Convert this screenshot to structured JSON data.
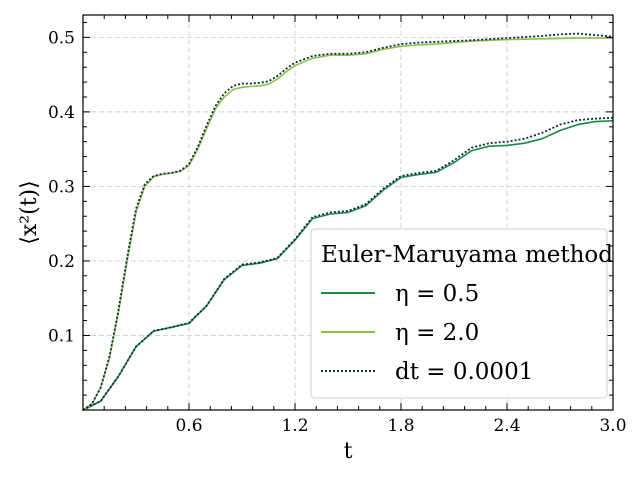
{
  "chart_data": {
    "type": "line",
    "xlabel": "t",
    "ylabel": "⟨x²(t)⟩",
    "xlim": [
      0.0,
      3.0
    ],
    "ylim": [
      0.0,
      0.53
    ],
    "xticks": [
      0.6,
      1.2,
      1.8,
      2.4,
      3.0
    ],
    "xtick_labels": [
      "0.6",
      "1.2",
      "1.8",
      "2.4",
      "3.0"
    ],
    "yticks": [
      0.1,
      0.2,
      0.3,
      0.4,
      0.5
    ],
    "ytick_labels": [
      "0.1",
      "0.2",
      "0.3",
      "0.4",
      "0.5"
    ],
    "grid": true,
    "legend": {
      "placement": "lower-right",
      "title": "Euler-Maruyama method",
      "entries": [
        {
          "label": "η = 0.5",
          "color": "#1a8a45",
          "style": "solid"
        },
        {
          "label": "η = 2.0",
          "color": "#8bc34a",
          "style": "solid"
        },
        {
          "label": "dt = 0.0001",
          "color": "#0b2a4a",
          "style": "dotted"
        }
      ]
    },
    "series": [
      {
        "name": "η = 0.5",
        "color": "#1a8a45",
        "style": "solid",
        "x": [
          0.0,
          0.1,
          0.2,
          0.3,
          0.4,
          0.5,
          0.6,
          0.7,
          0.8,
          0.9,
          1.0,
          1.1,
          1.2,
          1.3,
          1.4,
          1.5,
          1.6,
          1.7,
          1.8,
          1.9,
          2.0,
          2.1,
          2.2,
          2.3,
          2.4,
          2.5,
          2.6,
          2.7,
          2.8,
          2.9,
          3.0
        ],
        "y": [
          0.0,
          0.012,
          0.045,
          0.085,
          0.106,
          0.111,
          0.116,
          0.14,
          0.175,
          0.194,
          0.197,
          0.203,
          0.228,
          0.257,
          0.263,
          0.265,
          0.274,
          0.295,
          0.312,
          0.316,
          0.319,
          0.332,
          0.348,
          0.354,
          0.355,
          0.358,
          0.364,
          0.375,
          0.383,
          0.387,
          0.388
        ]
      },
      {
        "name": "η = 2.0",
        "color": "#8bc34a",
        "style": "solid",
        "x": [
          0.0,
          0.05,
          0.1,
          0.15,
          0.2,
          0.25,
          0.3,
          0.35,
          0.4,
          0.45,
          0.5,
          0.55,
          0.6,
          0.65,
          0.7,
          0.75,
          0.8,
          0.85,
          0.9,
          0.95,
          1.0,
          1.05,
          1.1,
          1.15,
          1.2,
          1.3,
          1.4,
          1.5,
          1.6,
          1.7,
          1.8,
          1.9,
          2.0,
          2.2,
          2.4,
          2.6,
          2.8,
          3.0
        ],
        "y": [
          0.0,
          0.008,
          0.03,
          0.07,
          0.13,
          0.2,
          0.265,
          0.3,
          0.313,
          0.316,
          0.318,
          0.32,
          0.328,
          0.35,
          0.378,
          0.404,
          0.42,
          0.43,
          0.433,
          0.434,
          0.435,
          0.437,
          0.444,
          0.454,
          0.462,
          0.472,
          0.476,
          0.476,
          0.478,
          0.484,
          0.488,
          0.49,
          0.491,
          0.495,
          0.497,
          0.498,
          0.499,
          0.499
        ]
      },
      {
        "name": "dt = 0.0001 (η = 0.5)",
        "color": "#0b2a4a",
        "style": "dotted",
        "x": [
          0.0,
          0.1,
          0.2,
          0.3,
          0.4,
          0.5,
          0.6,
          0.7,
          0.8,
          0.9,
          1.0,
          1.1,
          1.2,
          1.3,
          1.4,
          1.5,
          1.6,
          1.7,
          1.8,
          1.9,
          2.0,
          2.1,
          2.2,
          2.3,
          2.4,
          2.5,
          2.6,
          2.7,
          2.8,
          2.9,
          3.0
        ],
        "y": [
          0.0,
          0.012,
          0.045,
          0.085,
          0.106,
          0.111,
          0.117,
          0.14,
          0.176,
          0.195,
          0.198,
          0.204,
          0.229,
          0.259,
          0.265,
          0.267,
          0.276,
          0.297,
          0.314,
          0.318,
          0.321,
          0.335,
          0.352,
          0.358,
          0.36,
          0.364,
          0.372,
          0.383,
          0.389,
          0.391,
          0.392
        ]
      },
      {
        "name": "dt = 0.0001 (η = 2.0)",
        "color": "#0b2a4a",
        "style": "dotted",
        "x": [
          0.0,
          0.05,
          0.1,
          0.15,
          0.2,
          0.25,
          0.3,
          0.35,
          0.4,
          0.45,
          0.5,
          0.55,
          0.6,
          0.65,
          0.7,
          0.75,
          0.8,
          0.85,
          0.9,
          0.95,
          1.0,
          1.05,
          1.1,
          1.15,
          1.2,
          1.3,
          1.4,
          1.5,
          1.6,
          1.7,
          1.8,
          1.9,
          2.0,
          2.2,
          2.4,
          2.6,
          2.7,
          2.8,
          2.9,
          3.0
        ],
        "y": [
          0.0,
          0.008,
          0.03,
          0.072,
          0.133,
          0.205,
          0.27,
          0.303,
          0.314,
          0.317,
          0.318,
          0.321,
          0.33,
          0.353,
          0.382,
          0.408,
          0.425,
          0.435,
          0.438,
          0.438,
          0.439,
          0.441,
          0.448,
          0.458,
          0.466,
          0.475,
          0.478,
          0.478,
          0.48,
          0.486,
          0.491,
          0.493,
          0.494,
          0.496,
          0.499,
          0.502,
          0.504,
          0.505,
          0.503,
          0.501
        ]
      }
    ]
  }
}
